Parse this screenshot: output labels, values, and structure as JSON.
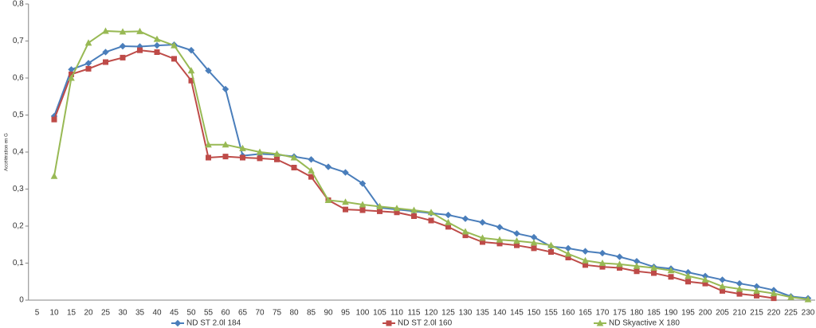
{
  "chart_data": {
    "type": "line",
    "y_label": "Accélération en G",
    "categories": [
      5,
      10,
      15,
      20,
      25,
      30,
      35,
      40,
      45,
      50,
      55,
      60,
      65,
      70,
      75,
      80,
      85,
      90,
      95,
      100,
      105,
      110,
      115,
      120,
      125,
      130,
      135,
      140,
      145,
      150,
      155,
      160,
      165,
      170,
      175,
      180,
      185,
      190,
      195,
      200,
      205,
      210,
      215,
      220,
      225,
      230
    ],
    "ylim": [
      0,
      0.8
    ],
    "yticks": [
      0,
      {
        "value": 0.1,
        "label": "0,1"
      },
      {
        "value": 0.2,
        "label": "0,2"
      },
      {
        "value": 0.3,
        "label": "0,3"
      },
      {
        "value": 0.4,
        "label": "0,4"
      },
      {
        "value": 0.5,
        "label": "0,5"
      },
      {
        "value": 0.6,
        "label": "0,6"
      },
      {
        "value": 0.7,
        "label": "0,7"
      },
      {
        "value": 0.8,
        "label": "0,8"
      }
    ],
    "legend": "bottom",
    "series": [
      {
        "name": "ND ST 2.0l 184",
        "color": "#4a7ebb",
        "marker": "diamond",
        "values": [
          null,
          0.497,
          0.623,
          0.64,
          0.67,
          0.686,
          0.685,
          0.688,
          0.69,
          0.675,
          0.62,
          0.57,
          0.39,
          0.395,
          0.393,
          0.388,
          0.38,
          0.36,
          0.345,
          0.315,
          0.25,
          0.245,
          0.24,
          0.235,
          0.23,
          0.22,
          0.21,
          0.197,
          0.18,
          0.17,
          0.145,
          0.14,
          0.132,
          0.127,
          0.117,
          0.105,
          0.09,
          0.085,
          0.075,
          0.065,
          0.055,
          0.045,
          0.037,
          0.027,
          0.01,
          0.005
        ]
      },
      {
        "name": "ND ST 2.0l 160",
        "color": "#be4b48",
        "marker": "square",
        "values": [
          null,
          0.488,
          0.61,
          0.625,
          0.643,
          0.655,
          0.675,
          0.67,
          0.652,
          0.593,
          0.385,
          0.388,
          0.385,
          0.383,
          0.38,
          0.358,
          0.333,
          0.27,
          0.245,
          0.243,
          0.24,
          0.237,
          0.227,
          0.215,
          0.198,
          0.175,
          0.157,
          0.153,
          0.148,
          0.14,
          0.13,
          0.115,
          0.095,
          0.09,
          0.087,
          0.078,
          0.073,
          0.063,
          0.05,
          0.045,
          0.025,
          0.017,
          0.012,
          0.005,
          null,
          null
        ]
      },
      {
        "name": "ND Skyactive X 180",
        "color": "#98b954",
        "marker": "triangle",
        "values": [
          null,
          0.335,
          0.6,
          0.695,
          0.727,
          0.725,
          0.726,
          0.705,
          0.688,
          0.62,
          0.42,
          0.42,
          0.41,
          0.4,
          0.395,
          0.385,
          0.35,
          0.27,
          0.265,
          0.258,
          0.253,
          0.248,
          0.243,
          0.237,
          0.21,
          0.185,
          0.168,
          0.163,
          0.16,
          0.155,
          0.148,
          0.125,
          0.107,
          0.1,
          0.097,
          0.092,
          0.087,
          0.08,
          0.065,
          0.055,
          0.037,
          0.03,
          0.025,
          0.018,
          0.008,
          0.002
        ]
      }
    ]
  }
}
